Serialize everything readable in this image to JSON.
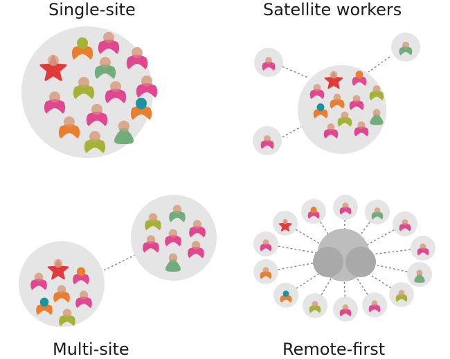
{
  "panels": {
    "single_site": {
      "title": "Single-site"
    },
    "satellite": {
      "title": "Satellite workers"
    },
    "multi_site": {
      "title": "Multi-site"
    },
    "remote_first": {
      "title": "Remote-first"
    }
  },
  "colors": {
    "pink": "#e0478f",
    "olive": "#a5b236",
    "orange": "#ea7e2f",
    "green": "#72ac7c",
    "red_star": "#e03a3a",
    "teal_head": "#1b93a0",
    "head": "#d9a486",
    "circle": "#e5e5e5",
    "hub": "#bdbdbd"
  }
}
